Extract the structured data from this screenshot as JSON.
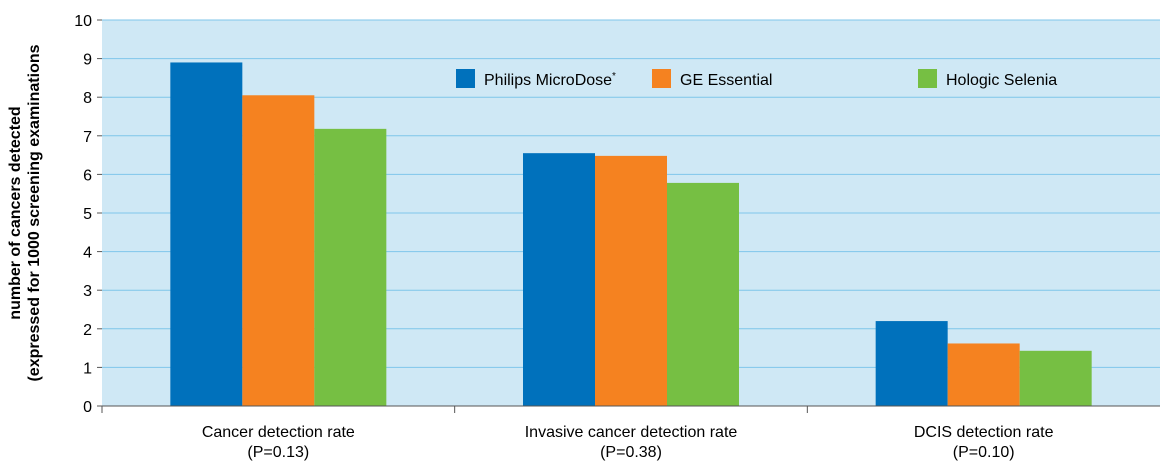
{
  "chart_data": {
    "type": "bar",
    "categories": [
      "Cancer detection rate",
      "Invasive cancer detection rate",
      "DCIS detection rate"
    ],
    "category_notes": [
      "(P=0.13)",
      "(P=0.38)",
      "(P=0.10)"
    ],
    "series": [
      {
        "name": "Philips MicroDose",
        "name_mark": "*",
        "color": "#0071bc",
        "values": [
          8.9,
          6.55,
          2.2
        ]
      },
      {
        "name": "GE Essential",
        "color": "#f58220",
        "values": [
          8.05,
          6.48,
          1.62
        ]
      },
      {
        "name": "Hologic Selenia",
        "color": "#76bf43",
        "values": [
          7.18,
          5.78,
          1.43
        ]
      }
    ],
    "ylabel_lines": [
      "number of cancers detected",
      "(expressed for 1000 screening examinations"
    ],
    "xlabel": "",
    "ylim": [
      0,
      10
    ],
    "yticks": [
      "0",
      "1",
      "2",
      "3",
      "4",
      "5",
      "6",
      "7",
      "8",
      "9",
      "10"
    ],
    "grid": true,
    "legend_position": "top-right",
    "plot_background": "#cfe8f5",
    "grid_color": "#7fc6ea"
  }
}
